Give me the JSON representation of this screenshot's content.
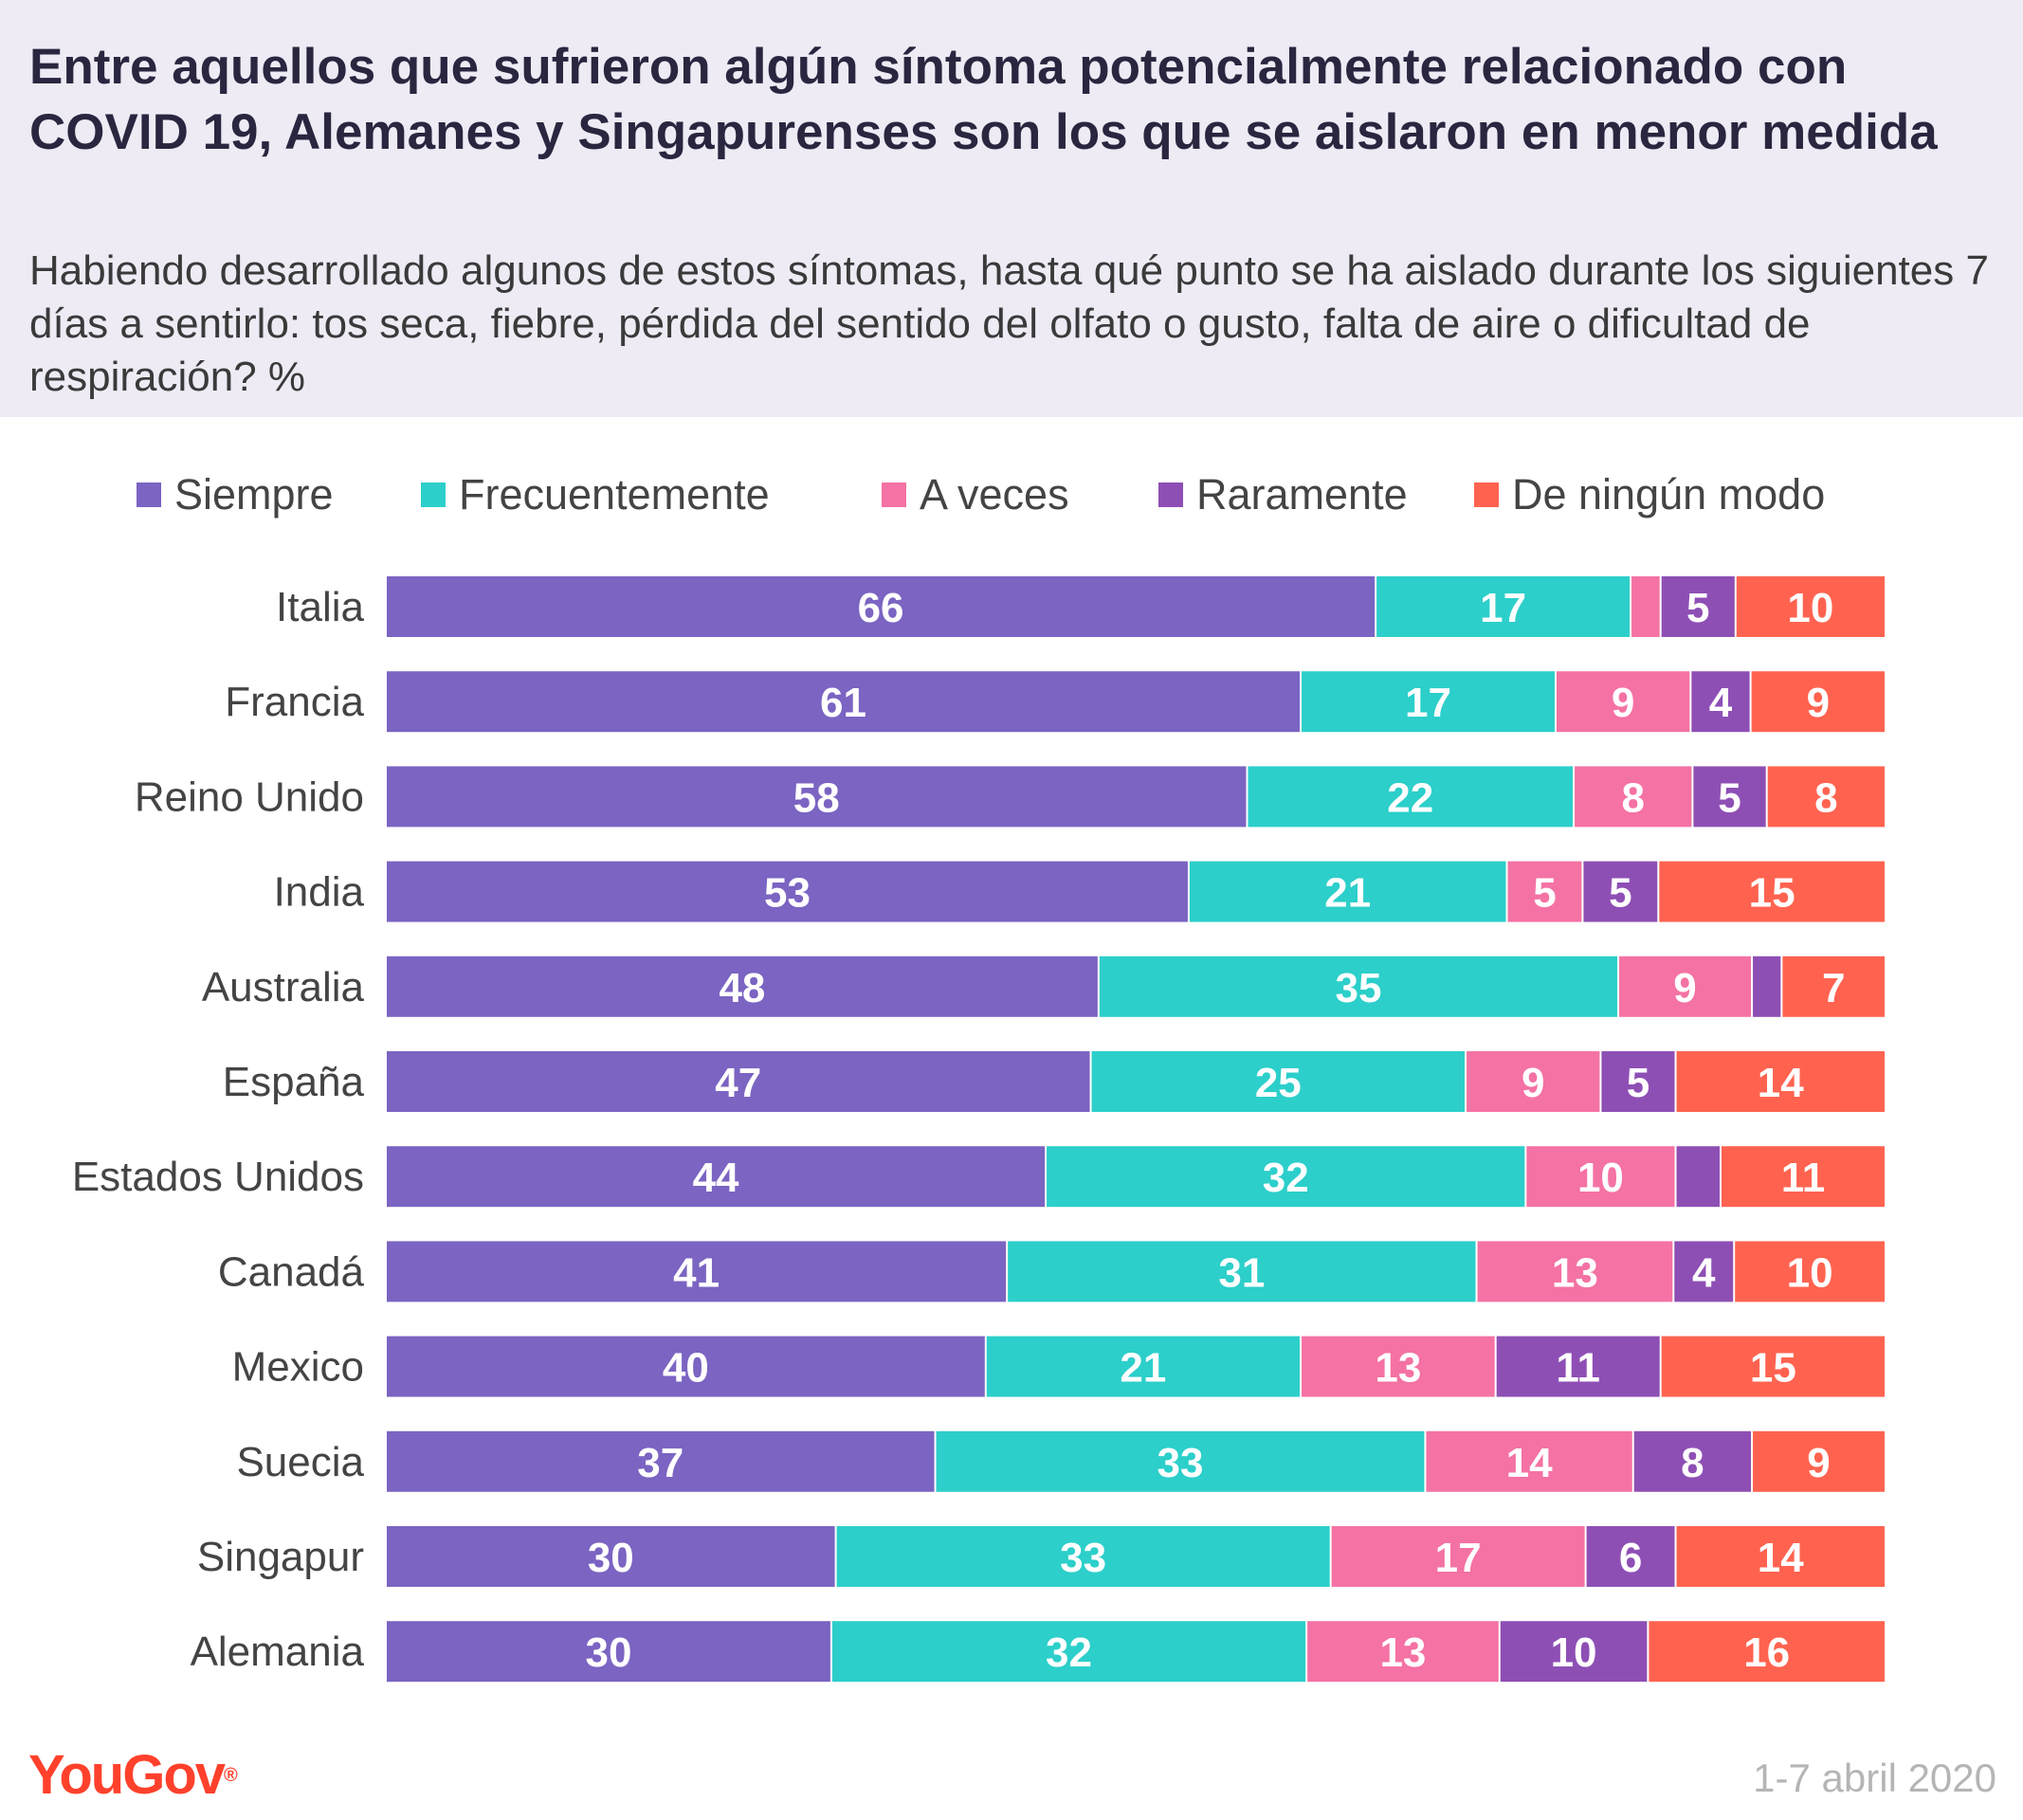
{
  "header": {
    "title": "Entre aquellos que sufrieron algún síntoma potencialmente relacionado con COVID 19, Alemanes y Singapurenses son los que se aislaron en menor medida",
    "subtitle": "Habiendo desarrollado algunos de estos síntomas, hasta qué punto se ha aislado durante los siguientes 7 días a sentirlo: tos seca, fiebre, pérdida del sentido del olfato o gusto, falta de aire o dificultad de respiración? %"
  },
  "legend": [
    {
      "label": "Siempre",
      "color": "#7b64c2"
    },
    {
      "label": "Frecuentemente",
      "color": "#2ccfca"
    },
    {
      "label": "A veces",
      "color": "#f472a4"
    },
    {
      "label": "Raramente",
      "color": "#8e4fb5"
    },
    {
      "label": "De ningún modo",
      "color": "#ff6350"
    }
  ],
  "chart_data": {
    "type": "bar",
    "orientation": "horizontal",
    "stacked": true,
    "categories": [
      "Italia",
      "Francia",
      "Reino Unido",
      "India",
      "Australia",
      "España",
      "Estados Unidos",
      "Canadá",
      "Mexico",
      "Suecia",
      "Singapur",
      "Alemania"
    ],
    "series": [
      {
        "name": "Siempre",
        "color": "#7b64c2",
        "values": [
          66,
          61,
          58,
          53,
          48,
          47,
          44,
          41,
          40,
          37,
          30,
          30
        ]
      },
      {
        "name": "Frecuentemente",
        "color": "#2ccfca",
        "values": [
          17,
          17,
          22,
          21,
          35,
          25,
          32,
          31,
          21,
          33,
          33,
          32
        ]
      },
      {
        "name": "A veces",
        "color": "#f472a4",
        "values": [
          2,
          9,
          8,
          5,
          9,
          9,
          10,
          13,
          13,
          14,
          17,
          13
        ]
      },
      {
        "name": "Raramente",
        "color": "#8e4fb5",
        "values": [
          5,
          4,
          5,
          5,
          2,
          5,
          3,
          4,
          11,
          8,
          6,
          10
        ]
      },
      {
        "name": "De ningún modo",
        "color": "#ff6350",
        "values": [
          10,
          9,
          8,
          15,
          7,
          14,
          11,
          10,
          15,
          9,
          14,
          16
        ]
      }
    ],
    "labels_hidden_below": 3,
    "xlim": [
      0,
      100
    ],
    "grid": false,
    "legend_position": "top"
  },
  "footer": {
    "logo": "YouGov",
    "logo_mark": "®",
    "date": "1-7 abril 2020"
  }
}
